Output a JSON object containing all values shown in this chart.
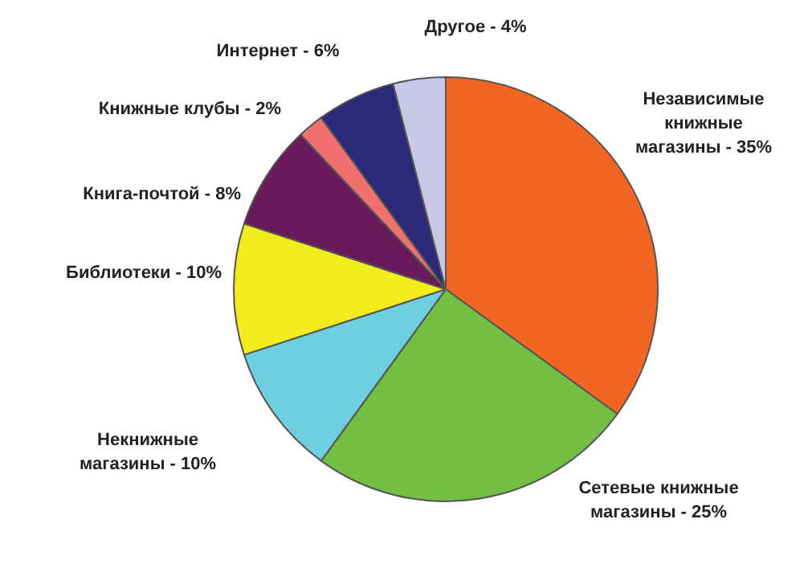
{
  "chart_data": {
    "type": "pie",
    "categories": [
      "Независимые книжные магазины -",
      "Сетевые книжные магазины -",
      "Некнижные магазины -",
      "Библиотеки -",
      "Книга-почтой -",
      "Книжные клубы -",
      "Интернет -",
      "Другое -"
    ],
    "values": [
      35,
      25,
      10,
      10,
      8,
      2,
      6,
      4
    ],
    "value_labels": [
      "35%",
      "25%",
      "10%",
      "10%",
      "8%",
      "2%",
      "6%",
      "4%"
    ],
    "colors": [
      "#f26522",
      "#72bf44",
      "#6dcfe0",
      "#f2ec1c",
      "#6a1a5a",
      "#f07070",
      "#2a2a78",
      "#c8c8e8"
    ],
    "legend": false
  }
}
